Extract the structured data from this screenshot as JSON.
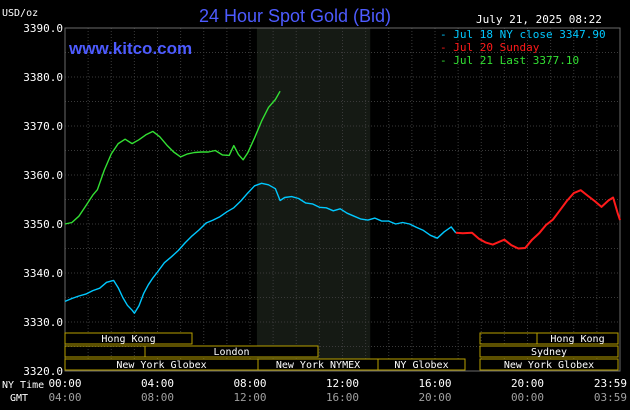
{
  "chart_data": {
    "type": "line",
    "title": "24 Hour Spot Gold (Bid)",
    "ylabel": "USD/oz",
    "site": "www.kitco.com",
    "timestamp": "July 21, 2025 08:22",
    "ylim": [
      3320,
      3390
    ],
    "y_ticks": [
      "3390.0",
      "3380.0",
      "3370.0",
      "3360.0",
      "3350.0",
      "3340.0",
      "3330.0",
      "3320.0"
    ],
    "x_row_labels": {
      "ny": "NY Time",
      "gmt": "GMT"
    },
    "x_ticks_ny": [
      "00:00",
      "04:00",
      "08:00",
      "12:00",
      "16:00",
      "20:00",
      "23:59"
    ],
    "x_ticks_gmt": [
      "04:00",
      "08:00",
      "12:00",
      "16:00",
      "20:00",
      "00:00",
      "03:59"
    ],
    "grid": true,
    "legend_position": "top-right",
    "series": [
      {
        "name": "Jul 18 NY close 3347.90",
        "color": "#00c8ff",
        "points": [
          [
            0.0,
            3334.2
          ],
          [
            0.3,
            3334.8
          ],
          [
            0.6,
            3335.3
          ],
          [
            0.9,
            3335.7
          ],
          [
            1.2,
            3336.4
          ],
          [
            1.5,
            3336.9
          ],
          [
            1.8,
            3338.1
          ],
          [
            2.1,
            3338.5
          ],
          [
            2.3,
            3337.0
          ],
          [
            2.5,
            3335.0
          ],
          [
            2.7,
            3333.4
          ],
          [
            2.9,
            3332.4
          ],
          [
            3.0,
            3331.8
          ],
          [
            3.2,
            3333.3
          ],
          [
            3.4,
            3335.8
          ],
          [
            3.6,
            3337.6
          ],
          [
            3.8,
            3339.0
          ],
          [
            4.0,
            3340.2
          ],
          [
            4.3,
            3342.1
          ],
          [
            4.6,
            3343.3
          ],
          [
            4.9,
            3344.6
          ],
          [
            5.2,
            3346.2
          ],
          [
            5.5,
            3347.6
          ],
          [
            5.8,
            3348.8
          ],
          [
            6.1,
            3350.2
          ],
          [
            6.4,
            3350.8
          ],
          [
            6.7,
            3351.5
          ],
          [
            7.0,
            3352.5
          ],
          [
            7.3,
            3353.3
          ],
          [
            7.6,
            3354.7
          ],
          [
            7.9,
            3356.3
          ],
          [
            8.2,
            3357.8
          ],
          [
            8.5,
            3358.3
          ],
          [
            8.8,
            3358.0
          ],
          [
            9.1,
            3357.2
          ],
          [
            9.3,
            3354.8
          ],
          [
            9.5,
            3355.4
          ],
          [
            9.8,
            3355.6
          ],
          [
            10.1,
            3355.2
          ],
          [
            10.4,
            3354.3
          ],
          [
            10.7,
            3354.1
          ],
          [
            11.0,
            3353.4
          ],
          [
            11.3,
            3353.3
          ],
          [
            11.6,
            3352.7
          ],
          [
            11.9,
            3353.1
          ],
          [
            12.2,
            3352.2
          ],
          [
            12.5,
            3351.6
          ],
          [
            12.8,
            3351.0
          ],
          [
            13.1,
            3350.8
          ],
          [
            13.4,
            3351.2
          ],
          [
            13.7,
            3350.6
          ],
          [
            14.0,
            3350.6
          ],
          [
            14.3,
            3350.0
          ],
          [
            14.6,
            3350.3
          ],
          [
            14.9,
            3350.0
          ],
          [
            15.2,
            3349.3
          ],
          [
            15.5,
            3348.7
          ],
          [
            15.8,
            3347.7
          ],
          [
            16.1,
            3347.1
          ],
          [
            16.4,
            3348.4
          ],
          [
            16.7,
            3349.4
          ],
          [
            16.9,
            3348.2
          ]
        ]
      },
      {
        "name": "Jul 20 Sunday",
        "color": "#ff1a1a",
        "points": [
          [
            16.9,
            3348.2
          ],
          [
            17.2,
            3348.1
          ],
          [
            17.6,
            3348.2
          ],
          [
            17.9,
            3347.0
          ],
          [
            18.2,
            3346.2
          ],
          [
            18.5,
            3345.8
          ],
          [
            18.8,
            3346.4
          ],
          [
            19.0,
            3346.8
          ],
          [
            19.3,
            3345.7
          ],
          [
            19.6,
            3345.0
          ],
          [
            19.9,
            3345.1
          ],
          [
            20.2,
            3346.8
          ],
          [
            20.5,
            3348.1
          ],
          [
            20.8,
            3349.8
          ],
          [
            21.1,
            3350.9
          ],
          [
            21.4,
            3352.8
          ],
          [
            21.7,
            3354.7
          ],
          [
            22.0,
            3356.3
          ],
          [
            22.3,
            3356.9
          ],
          [
            22.6,
            3355.8
          ],
          [
            22.9,
            3354.7
          ],
          [
            23.2,
            3353.5
          ],
          [
            23.5,
            3354.8
          ],
          [
            23.7,
            3355.4
          ],
          [
            23.9,
            3352.2
          ],
          [
            24.0,
            3350.8
          ]
        ]
      },
      {
        "name": "Jul 21 Last 3377.10",
        "color": "#33e033",
        "points": [
          [
            0.0,
            3350.0
          ],
          [
            0.3,
            3350.3
          ],
          [
            0.6,
            3351.6
          ],
          [
            0.9,
            3353.7
          ],
          [
            1.2,
            3355.9
          ],
          [
            1.4,
            3357.0
          ],
          [
            1.7,
            3361.0
          ],
          [
            2.0,
            3364.3
          ],
          [
            2.3,
            3366.4
          ],
          [
            2.6,
            3367.3
          ],
          [
            2.9,
            3366.4
          ],
          [
            3.2,
            3367.2
          ],
          [
            3.5,
            3368.2
          ],
          [
            3.8,
            3368.9
          ],
          [
            4.1,
            3367.8
          ],
          [
            4.4,
            3366.1
          ],
          [
            4.7,
            3364.7
          ],
          [
            5.0,
            3363.7
          ],
          [
            5.3,
            3364.3
          ],
          [
            5.6,
            3364.6
          ],
          [
            5.9,
            3364.7
          ],
          [
            6.2,
            3364.7
          ],
          [
            6.5,
            3365.0
          ],
          [
            6.8,
            3364.1
          ],
          [
            7.1,
            3364.0
          ],
          [
            7.3,
            3366.0
          ],
          [
            7.5,
            3364.2
          ],
          [
            7.7,
            3363.1
          ],
          [
            7.9,
            3364.5
          ],
          [
            8.2,
            3367.6
          ],
          [
            8.5,
            3371.0
          ],
          [
            8.8,
            3373.8
          ],
          [
            9.1,
            3375.4
          ],
          [
            9.3,
            3377.1
          ]
        ]
      }
    ],
    "markets": [
      {
        "name": "Hong Kong"
      },
      {
        "name": "London"
      },
      {
        "name": "New York Globex"
      },
      {
        "name": "New York NYMEX"
      },
      {
        "name": "NY Globex"
      },
      {
        "name": "Hong Kong"
      },
      {
        "name": "Sydney"
      },
      {
        "name": "New York Globex"
      }
    ]
  }
}
